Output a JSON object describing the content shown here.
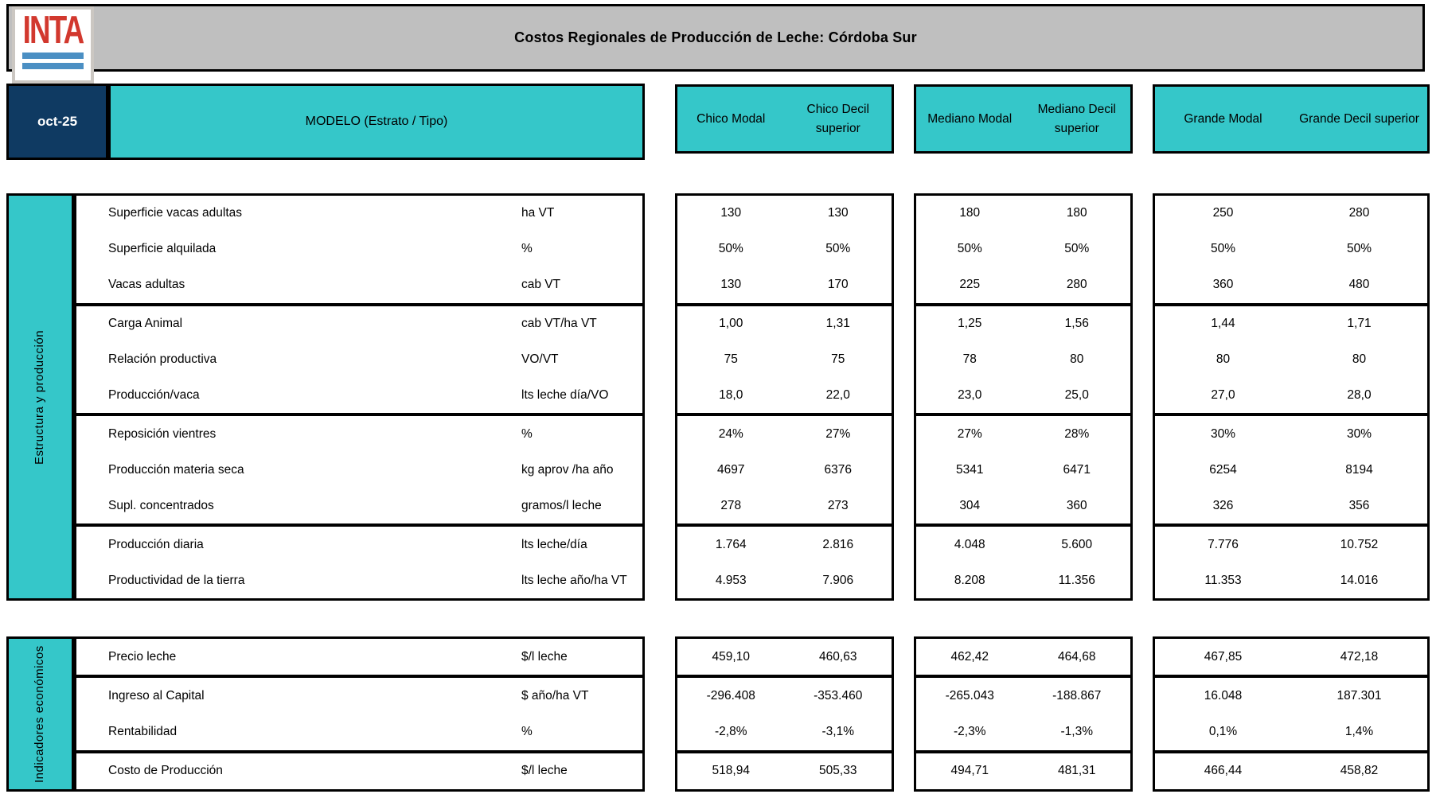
{
  "header": {
    "title": "Costos Regionales de Producción de Leche: Córdoba Sur",
    "date": "oct-25",
    "modelo_label": "MODELO (Estrato / Tipo)",
    "logo": {
      "text": "INTA"
    },
    "column_groups": [
      {
        "columns": [
          "Chico Modal",
          "Chico Decil superior"
        ]
      },
      {
        "columns": [
          "Mediano Modal",
          "Mediano Decil superior"
        ]
      },
      {
        "columns": [
          "Grande Modal",
          "Grande Decil superior"
        ]
      }
    ]
  },
  "colors": {
    "teal": "#35C7C9",
    "navy": "#0F3A62",
    "header_gray": "#BFBFBF",
    "logo_red": "#D2382E",
    "logo_blue": "#4B8FC3"
  },
  "sections": [
    {
      "name": "Estructura y producción",
      "rows": [
        {
          "label": "Superficie vacas adultas",
          "unit": "ha VT",
          "values": [
            "130",
            "130",
            "180",
            "180",
            "250",
            "280"
          ],
          "group_end": false
        },
        {
          "label": "Superficie alquilada",
          "unit": "%",
          "values": [
            "50%",
            "50%",
            "50%",
            "50%",
            "50%",
            "50%"
          ],
          "group_end": false
        },
        {
          "label": "Vacas adultas",
          "unit": "cab VT",
          "values": [
            "130",
            "170",
            "225",
            "280",
            "360",
            "480"
          ],
          "group_end": true
        },
        {
          "label": "Carga Animal",
          "unit": "cab VT/ha VT",
          "values": [
            "1,00",
            "1,31",
            "1,25",
            "1,56",
            "1,44",
            "1,71"
          ],
          "group_end": false
        },
        {
          "label": "Relación productiva",
          "unit": "VO/VT",
          "values": [
            "75",
            "75",
            "78",
            "80",
            "80",
            "80"
          ],
          "group_end": false
        },
        {
          "label": "Producción/vaca",
          "unit": "lts leche día/VO",
          "values": [
            "18,0",
            "22,0",
            "23,0",
            "25,0",
            "27,0",
            "28,0"
          ],
          "group_end": true
        },
        {
          "label": "Reposición vientres",
          "unit": "%",
          "values": [
            "24%",
            "27%",
            "27%",
            "28%",
            "30%",
            "30%"
          ],
          "group_end": false
        },
        {
          "label": "Producción materia seca",
          "unit": "kg aprov /ha año",
          "values": [
            "4697",
            "6376",
            "5341",
            "6471",
            "6254",
            "8194"
          ],
          "group_end": false
        },
        {
          "label": "Supl. concentrados",
          "unit": "gramos/l leche",
          "values": [
            "278",
            "273",
            "304",
            "360",
            "326",
            "356"
          ],
          "group_end": true
        },
        {
          "label": "Producción diaria",
          "unit": "lts leche/día",
          "values": [
            "1.764",
            "2.816",
            "4.048",
            "5.600",
            "7.776",
            "10.752"
          ],
          "group_end": false
        },
        {
          "label": "Productividad de la tierra",
          "unit": "lts leche año/ha VT",
          "values": [
            "4.953",
            "7.906",
            "8.208",
            "11.356",
            "11.353",
            "14.016"
          ],
          "group_end": false
        }
      ]
    },
    {
      "name": "Indicadores económicos",
      "rows": [
        {
          "label": "Precio leche",
          "unit": "$/l leche",
          "values": [
            "459,10",
            "460,63",
            "462,42",
            "464,68",
            "467,85",
            "472,18"
          ],
          "group_end": true
        },
        {
          "label": "Ingreso al Capital",
          "unit": "$ año/ha VT",
          "values": [
            "-296.408",
            "-353.460",
            "-265.043",
            "-188.867",
            "16.048",
            "187.301"
          ],
          "group_end": false
        },
        {
          "label": "Rentabilidad",
          "unit": "%",
          "values": [
            "-2,8%",
            "-3,1%",
            "-2,3%",
            "-1,3%",
            "0,1%",
            "1,4%"
          ],
          "group_end": true
        },
        {
          "label": "Costo de Producción",
          "unit": "$/l leche",
          "values": [
            "518,94",
            "505,33",
            "494,71",
            "481,31",
            "466,44",
            "458,82"
          ],
          "group_end": false
        }
      ]
    }
  ]
}
